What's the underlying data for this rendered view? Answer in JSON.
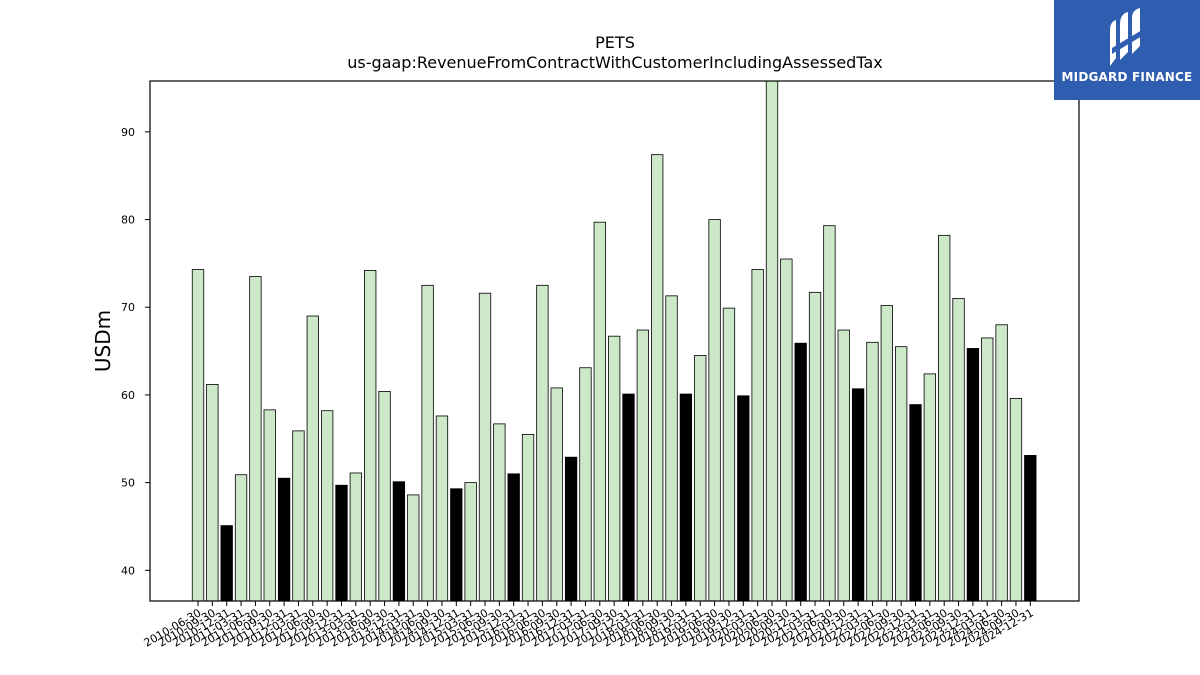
{
  "brand": {
    "name": "MIDGARD FINANCE",
    "color": "#2f5db0",
    "logo_icon": "midgard-logo-icon"
  },
  "colors": {
    "quarter_bar": "#cce8c8",
    "annual_bar": "#000000",
    "bar_edge": "#000000"
  },
  "chart_data": {
    "type": "bar",
    "title": "PETS",
    "subtitle": "us-gaap:RevenueFromContractWithCustomerIncludingAssessedTax",
    "xlabel": "",
    "ylabel": "USDm",
    "ylim": [
      36.5,
      95.8
    ],
    "yticks": [
      40,
      50,
      60,
      70,
      80,
      90
    ],
    "grid": false,
    "legend": "none",
    "categories": [
      "2010-06-30",
      "2010-09-30",
      "2010-12-31",
      "2011-03-31",
      "2011-06-30",
      "2011-09-30",
      "2011-12-31",
      "2012-03-31",
      "2012-06-30",
      "2012-09-30",
      "2012-12-31",
      "2013-03-31",
      "2013-06-30",
      "2013-09-30",
      "2013-12-31",
      "2014-03-31",
      "2014-06-30",
      "2014-09-30",
      "2014-12-31",
      "2015-03-31",
      "2015-06-30",
      "2015-09-30",
      "2015-12-31",
      "2016-03-31",
      "2016-06-30",
      "2016-09-30",
      "2016-12-31",
      "2017-03-31",
      "2017-06-30",
      "2017-09-30",
      "2017-12-31",
      "2018-03-31",
      "2018-06-30",
      "2018-09-30",
      "2018-12-31",
      "2019-03-31",
      "2019-06-30",
      "2019-09-30",
      "2019-12-31",
      "2020-03-31",
      "2020-06-30",
      "2020-09-30",
      "2020-12-31",
      "2021-03-31",
      "2021-06-30",
      "2021-09-30",
      "2021-12-31",
      "2022-03-31",
      "2022-06-30",
      "2022-09-30",
      "2022-12-31",
      "2023-03-31",
      "2023-06-30",
      "2023-09-30",
      "2023-12-31",
      "2024-03-31",
      "2024-06-30",
      "2024-09-30",
      "2024-12-31"
    ],
    "values": [
      74.3,
      61.2,
      45.1,
      50.9,
      73.5,
      58.3,
      50.5,
      55.9,
      69.0,
      58.2,
      49.7,
      51.1,
      74.2,
      60.4,
      50.1,
      48.6,
      72.5,
      57.6,
      49.3,
      50.0,
      71.6,
      56.7,
      51.0,
      55.5,
      72.5,
      60.8,
      52.9,
      63.1,
      79.7,
      66.7,
      60.1,
      67.4,
      87.4,
      71.3,
      60.1,
      64.5,
      80.0,
      69.9,
      59.9,
      74.3,
      95.8,
      75.5,
      65.9,
      71.7,
      79.3,
      67.4,
      60.7,
      66.0,
      70.2,
      65.5,
      58.9,
      62.4,
      78.2,
      71.0,
      65.3,
      66.5,
      68.0,
      59.6,
      53.1
    ],
    "annual_flags": [
      false,
      false,
      true,
      false,
      false,
      false,
      true,
      false,
      false,
      false,
      true,
      false,
      false,
      false,
      true,
      false,
      false,
      false,
      true,
      false,
      false,
      false,
      true,
      false,
      false,
      false,
      true,
      false,
      false,
      false,
      true,
      false,
      false,
      false,
      true,
      false,
      false,
      false,
      true,
      false,
      false,
      false,
      true,
      false,
      false,
      false,
      true,
      false,
      false,
      false,
      true,
      false,
      false,
      false,
      true,
      false,
      false,
      false,
      true
    ]
  }
}
